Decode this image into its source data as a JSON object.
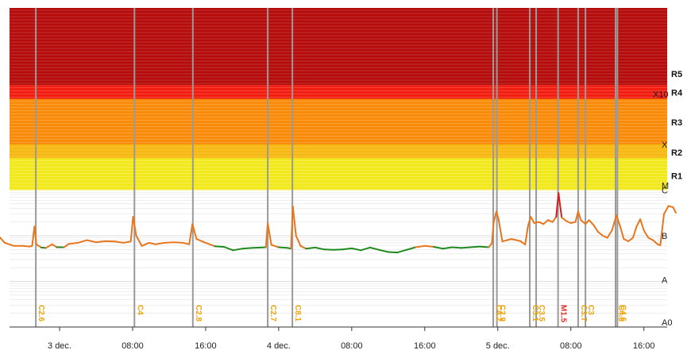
{
  "chart_data": {
    "type": "line",
    "title": "",
    "xlabel": "",
    "ylabel": "",
    "y_scale": "log",
    "x_range_hours": [
      -6.7,
      49.5
    ],
    "x_ticks": [
      {
        "label": "3 dec.",
        "h": 0
      },
      {
        "label": "08:00",
        "h": 8
      },
      {
        "label": "16:00",
        "h": 16
      },
      {
        "label": "4 dec.",
        "h": 24
      },
      {
        "label": "08:00",
        "h": 32
      },
      {
        "label": "16:00",
        "h": 40
      },
      {
        "label": "5 dec.",
        "h": 48
      },
      {
        "label": "08:00",
        "h": 56
      },
      {
        "label": "16:00",
        "h": 64
      }
    ],
    "flux_classes": [
      "A0",
      "A",
      "B",
      "C",
      "M",
      "X",
      "X10"
    ],
    "radio_blackout_labels": [
      "R1",
      "R2",
      "R3",
      "R4",
      "R5"
    ],
    "bands": [
      {
        "name": "R1",
        "from": "M",
        "to": "M5",
        "color": "#f2e91c"
      },
      {
        "name": "R2",
        "from": "M5",
        "to": "X",
        "color": "#f7b811"
      },
      {
        "name": "R3",
        "from": "X",
        "to": "X10",
        "color": "#f88b0a"
      },
      {
        "name": "R4",
        "from": "X10",
        "to": "X20",
        "color": "#f11b0e"
      },
      {
        "name": "R5",
        "from": "X20",
        "to": "top",
        "color": "#b50b0b"
      }
    ],
    "colors": {
      "xray_long": "#e8761e",
      "xray_low": "#1e8a1e",
      "xray_peak": "#cc2222",
      "flare_c_label": "#f0a30a",
      "flare_m_label": "#d9302c",
      "flare_line": "#9a9a9a",
      "grid": "#dcdcdc"
    },
    "flares": [
      {
        "label": "C2.6",
        "h": -2.6
      },
      {
        "label": "C4",
        "h": 8.2
      },
      {
        "label": "C2.8",
        "h": 14.6
      },
      {
        "label": "C2.7",
        "h": 22.8
      },
      {
        "label": "C8.1",
        "h": 25.5
      },
      {
        "label": "C4.2",
        "h": 47.5
      },
      {
        "label": "C2.9",
        "h": 47.9
      },
      {
        "label": "C3.1",
        "h": 51.5
      },
      {
        "label": "C3.5",
        "h": 52.2
      },
      {
        "label": "M1.5",
        "h": 54.6
      },
      {
        "label": "C3.7",
        "h": 56.8
      },
      {
        "label": "C3",
        "h": 57.6
      },
      {
        "label": "C4.8",
        "h": 60.9
      },
      {
        "label": "C4.6",
        "h": 61.1
      }
    ],
    "series": [
      {
        "name": "",
        "points": [
          [
            -6.7,
            1e-06
          ],
          [
            -6.0,
            7e-07
          ],
          [
            -5.0,
            6e-07
          ],
          [
            -4.0,
            6e-07
          ],
          [
            -3.3,
            5.8e-07
          ],
          [
            -3.0,
            6e-07
          ],
          [
            -2.75,
            1.6e-06
          ],
          [
            -2.55,
            6.5e-07
          ],
          [
            -2.0,
            5.5e-07
          ],
          [
            -1.5,
            5.4e-07
          ],
          [
            -0.8,
            6.5e-07
          ],
          [
            -0.3,
            5.6e-07
          ],
          [
            0.5,
            5.6e-07
          ],
          [
            1.0,
            6.6e-07
          ],
          [
            2.0,
            7e-07
          ],
          [
            3.0,
            8e-07
          ],
          [
            4.0,
            7.2e-07
          ],
          [
            5.0,
            7.6e-07
          ],
          [
            6.0,
            7.5e-07
          ],
          [
            7.0,
            7e-07
          ],
          [
            7.8,
            7.5e-07
          ],
          [
            8.05,
            2.6e-06
          ],
          [
            8.4,
            1e-06
          ],
          [
            9.0,
            6e-07
          ],
          [
            9.8,
            7e-07
          ],
          [
            10.5,
            6.5e-07
          ],
          [
            11.5,
            7e-07
          ],
          [
            12.5,
            7.2e-07
          ],
          [
            13.5,
            7e-07
          ],
          [
            14.2,
            6.5e-07
          ],
          [
            14.55,
            1.8e-06
          ],
          [
            15.0,
            8.5e-07
          ],
          [
            16.0,
            7e-07
          ],
          [
            17.0,
            5.9e-07
          ],
          [
            18.0,
            5.7e-07
          ],
          [
            19.0,
            4.8e-07
          ],
          [
            20.0,
            5.2e-07
          ],
          [
            21.0,
            5.4e-07
          ],
          [
            22.0,
            5.5e-07
          ],
          [
            22.6,
            5.6e-07
          ],
          [
            22.8,
            1.9e-06
          ],
          [
            23.2,
            6.3e-07
          ],
          [
            24.0,
            5.6e-07
          ],
          [
            25.0,
            5.4e-07
          ],
          [
            25.35,
            5.2e-07
          ],
          [
            25.55,
            4.4e-06
          ],
          [
            25.9,
            1e-06
          ],
          [
            26.4,
            6e-07
          ],
          [
            27.0,
            5.2e-07
          ],
          [
            28.0,
            5.5e-07
          ],
          [
            29.0,
            5e-07
          ],
          [
            30.0,
            4.9e-07
          ],
          [
            31.0,
            5e-07
          ],
          [
            32.0,
            5.3e-07
          ],
          [
            33.0,
            4.8e-07
          ],
          [
            34.0,
            5.5e-07
          ],
          [
            35.0,
            4.9e-07
          ],
          [
            36.0,
            4.4e-07
          ],
          [
            37.0,
            4.3e-07
          ],
          [
            38.0,
            4.9e-07
          ],
          [
            39.0,
            5.6e-07
          ],
          [
            40.0,
            6e-07
          ],
          [
            41.0,
            5.7e-07
          ],
          [
            42.0,
            5.2e-07
          ],
          [
            43.0,
            5.6e-07
          ],
          [
            44.0,
            5.4e-07
          ],
          [
            45.0,
            5.6e-07
          ],
          [
            46.0,
            5.8e-07
          ],
          [
            47.0,
            5.6e-07
          ],
          [
            47.35,
            6.8e-07
          ],
          [
            47.55,
            2e-06
          ],
          [
            47.85,
            3.4e-06
          ],
          [
            48.1,
            2.2e-06
          ],
          [
            48.5,
            7.5e-07
          ],
          [
            49.0,
            8e-07
          ],
          [
            49.5,
            8.5e-07
          ],
          [
            50.5,
            7.6e-07
          ],
          [
            51.0,
            6.4e-07
          ],
          [
            51.3,
            1.6e-06
          ],
          [
            51.6,
            2.6e-06
          ],
          [
            52.0,
            1.9e-06
          ],
          [
            52.5,
            2e-06
          ],
          [
            53.0,
            1.8e-06
          ],
          [
            53.5,
            2.2e-06
          ],
          [
            54.0,
            2e-06
          ],
          [
            54.4,
            2.6e-06
          ],
          [
            54.65,
            8.6e-06
          ],
          [
            55.0,
            2.5e-06
          ],
          [
            55.5,
            2.1e-06
          ],
          [
            56.0,
            1.9e-06
          ],
          [
            56.5,
            2e-06
          ],
          [
            56.8,
            3.4e-06
          ],
          [
            57.1,
            2.2e-06
          ],
          [
            57.6,
            1.8e-06
          ],
          [
            58.0,
            2.2e-06
          ],
          [
            58.5,
            1.7e-06
          ],
          [
            59.0,
            1.2e-06
          ],
          [
            59.5,
            1e-06
          ],
          [
            60.0,
            9e-07
          ],
          [
            60.5,
            1.3e-06
          ],
          [
            61.0,
            2.8e-06
          ],
          [
            61.4,
            1.6e-06
          ],
          [
            61.8,
            8.5e-07
          ],
          [
            62.3,
            7.6e-07
          ],
          [
            62.8,
            9e-07
          ],
          [
            63.2,
            1.6e-06
          ],
          [
            63.6,
            2.3e-06
          ],
          [
            64.0,
            1.3e-06
          ],
          [
            64.5,
            9e-07
          ],
          [
            65.0,
            8e-07
          ],
          [
            65.5,
            6.5e-07
          ],
          [
            65.8,
            6.2e-07
          ],
          [
            66.2,
            3e-06
          ],
          [
            66.7,
            4.5e-06
          ],
          [
            67.2,
            4.2e-06
          ],
          [
            67.5,
            3.2e-06
          ]
        ]
      }
    ]
  }
}
